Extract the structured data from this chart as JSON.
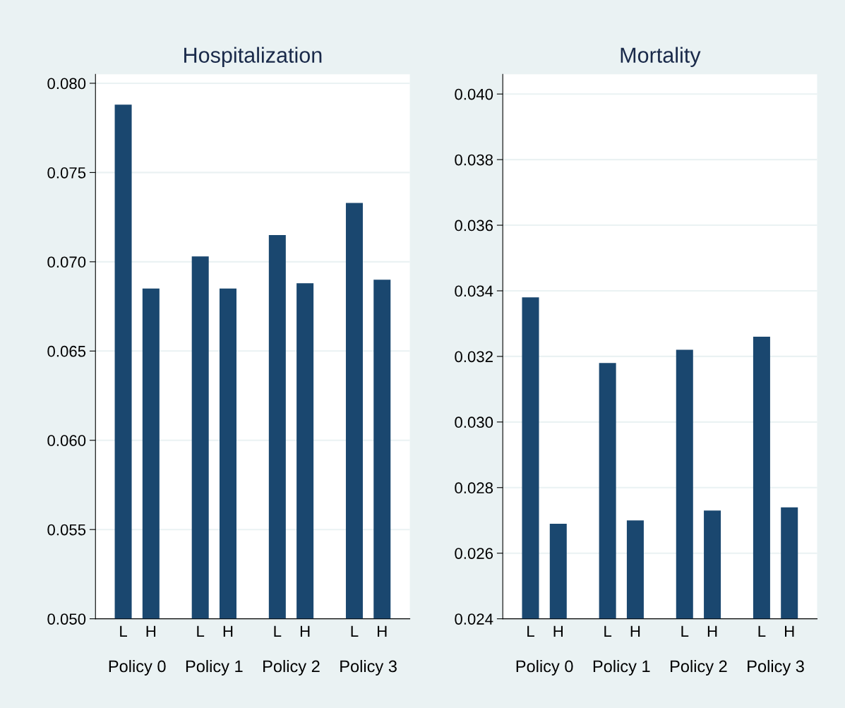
{
  "chart_data": [
    {
      "type": "bar",
      "title": "Hospitalization",
      "categories": [
        "Policy 0",
        "Policy 1",
        "Policy 2",
        "Policy 3"
      ],
      "series": [
        {
          "name": "L",
          "color": "#1a476f",
          "values": [
            0.0788,
            0.0703,
            0.0715,
            0.0733
          ]
        },
        {
          "name": "H",
          "color": "#1a476f",
          "values": [
            0.0685,
            0.0685,
            0.0688,
            0.069
          ]
        }
      ],
      "ylim": [
        0.05,
        0.0805
      ],
      "yticks": [
        {
          "value": 0.05,
          "label": "0.050"
        },
        {
          "value": 0.055,
          "label": "0.055"
        },
        {
          "value": 0.06,
          "label": "0.060"
        },
        {
          "value": 0.065,
          "label": "0.065"
        },
        {
          "value": 0.07,
          "label": "0.070"
        },
        {
          "value": 0.075,
          "label": "0.075"
        },
        {
          "value": 0.08,
          "label": "0.080"
        }
      ],
      "grid": "y",
      "legend": false
    },
    {
      "type": "bar",
      "title": "Mortality",
      "categories": [
        "Policy 0",
        "Policy 1",
        "Policy 2",
        "Policy 3"
      ],
      "series": [
        {
          "name": "L",
          "color": "#1a476f",
          "values": [
            0.0338,
            0.0318,
            0.0322,
            0.0326
          ]
        },
        {
          "name": "H",
          "color": "#1a476f",
          "values": [
            0.0269,
            0.027,
            0.0273,
            0.0274
          ]
        }
      ],
      "ylim": [
        0.024,
        0.0406
      ],
      "yticks": [
        {
          "value": 0.024,
          "label": "0.024"
        },
        {
          "value": 0.026,
          "label": "0.026"
        },
        {
          "value": 0.028,
          "label": "0.028"
        },
        {
          "value": 0.03,
          "label": "0.030"
        },
        {
          "value": 0.032,
          "label": "0.032"
        },
        {
          "value": 0.034,
          "label": "0.034"
        },
        {
          "value": 0.036,
          "label": "0.036"
        },
        {
          "value": 0.038,
          "label": "0.038"
        },
        {
          "value": 0.04,
          "label": "0.040"
        }
      ],
      "grid": "y",
      "legend": false
    }
  ]
}
